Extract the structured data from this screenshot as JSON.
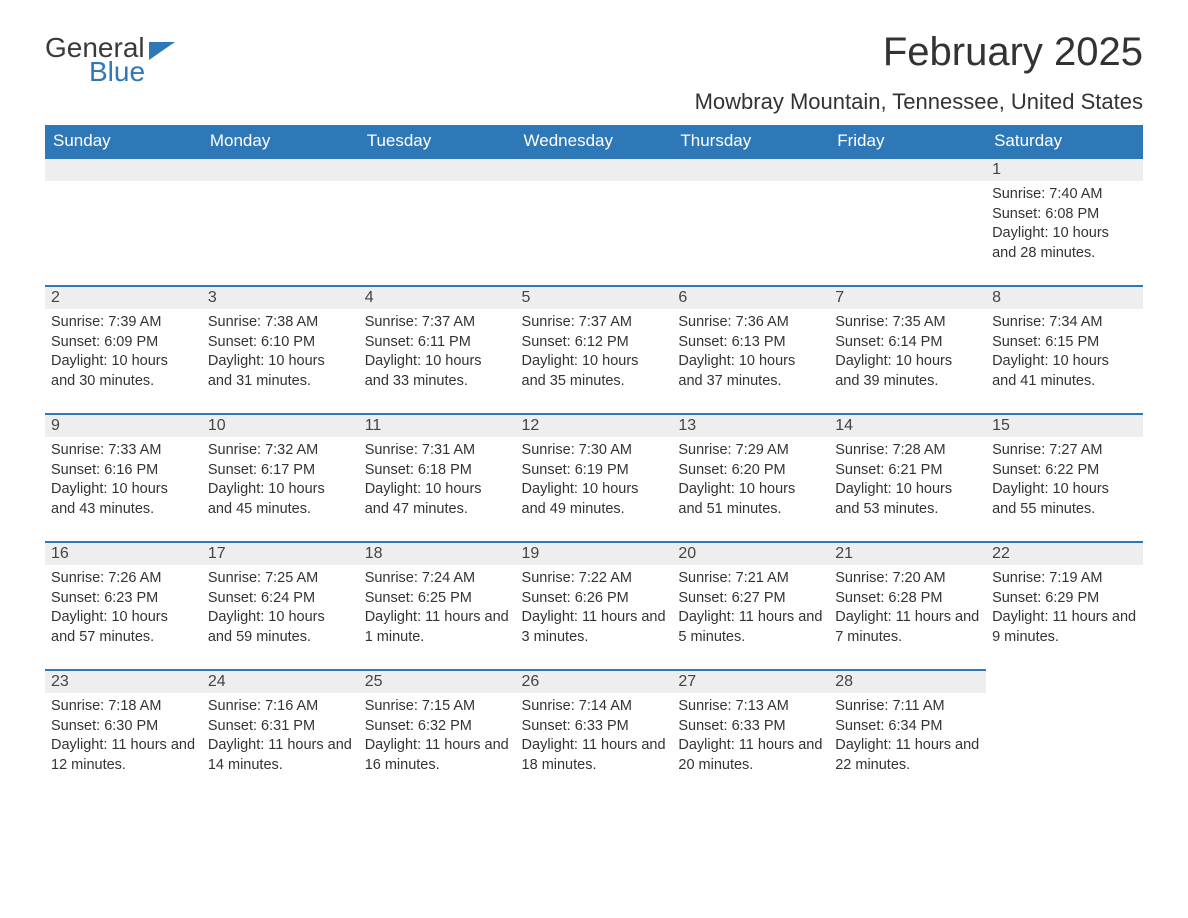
{
  "logo": {
    "word1": "General",
    "word2": "Blue"
  },
  "title": "February 2025",
  "location": "Mowbray Mountain, Tennessee, United States",
  "colors": {
    "header_bg": "#2e78b7",
    "header_text": "#ffffff",
    "daynum_bg": "#eeeeee",
    "body_text": "#333333",
    "page_bg": "#ffffff"
  },
  "daysOfWeek": [
    "Sunday",
    "Monday",
    "Tuesday",
    "Wednesday",
    "Thursday",
    "Friday",
    "Saturday"
  ],
  "weeks": [
    [
      null,
      null,
      null,
      null,
      null,
      null,
      {
        "n": "1",
        "sr": "7:40 AM",
        "ss": "6:08 PM",
        "dl": "10 hours and 28 minutes."
      }
    ],
    [
      {
        "n": "2",
        "sr": "7:39 AM",
        "ss": "6:09 PM",
        "dl": "10 hours and 30 minutes."
      },
      {
        "n": "3",
        "sr": "7:38 AM",
        "ss": "6:10 PM",
        "dl": "10 hours and 31 minutes."
      },
      {
        "n": "4",
        "sr": "7:37 AM",
        "ss": "6:11 PM",
        "dl": "10 hours and 33 minutes."
      },
      {
        "n": "5",
        "sr": "7:37 AM",
        "ss": "6:12 PM",
        "dl": "10 hours and 35 minutes."
      },
      {
        "n": "6",
        "sr": "7:36 AM",
        "ss": "6:13 PM",
        "dl": "10 hours and 37 minutes."
      },
      {
        "n": "7",
        "sr": "7:35 AM",
        "ss": "6:14 PM",
        "dl": "10 hours and 39 minutes."
      },
      {
        "n": "8",
        "sr": "7:34 AM",
        "ss": "6:15 PM",
        "dl": "10 hours and 41 minutes."
      }
    ],
    [
      {
        "n": "9",
        "sr": "7:33 AM",
        "ss": "6:16 PM",
        "dl": "10 hours and 43 minutes."
      },
      {
        "n": "10",
        "sr": "7:32 AM",
        "ss": "6:17 PM",
        "dl": "10 hours and 45 minutes."
      },
      {
        "n": "11",
        "sr": "7:31 AM",
        "ss": "6:18 PM",
        "dl": "10 hours and 47 minutes."
      },
      {
        "n": "12",
        "sr": "7:30 AM",
        "ss": "6:19 PM",
        "dl": "10 hours and 49 minutes."
      },
      {
        "n": "13",
        "sr": "7:29 AM",
        "ss": "6:20 PM",
        "dl": "10 hours and 51 minutes."
      },
      {
        "n": "14",
        "sr": "7:28 AM",
        "ss": "6:21 PM",
        "dl": "10 hours and 53 minutes."
      },
      {
        "n": "15",
        "sr": "7:27 AM",
        "ss": "6:22 PM",
        "dl": "10 hours and 55 minutes."
      }
    ],
    [
      {
        "n": "16",
        "sr": "7:26 AM",
        "ss": "6:23 PM",
        "dl": "10 hours and 57 minutes."
      },
      {
        "n": "17",
        "sr": "7:25 AM",
        "ss": "6:24 PM",
        "dl": "10 hours and 59 minutes."
      },
      {
        "n": "18",
        "sr": "7:24 AM",
        "ss": "6:25 PM",
        "dl": "11 hours and 1 minute."
      },
      {
        "n": "19",
        "sr": "7:22 AM",
        "ss": "6:26 PM",
        "dl": "11 hours and 3 minutes."
      },
      {
        "n": "20",
        "sr": "7:21 AM",
        "ss": "6:27 PM",
        "dl": "11 hours and 5 minutes."
      },
      {
        "n": "21",
        "sr": "7:20 AM",
        "ss": "6:28 PM",
        "dl": "11 hours and 7 minutes."
      },
      {
        "n": "22",
        "sr": "7:19 AM",
        "ss": "6:29 PM",
        "dl": "11 hours and 9 minutes."
      }
    ],
    [
      {
        "n": "23",
        "sr": "7:18 AM",
        "ss": "6:30 PM",
        "dl": "11 hours and 12 minutes."
      },
      {
        "n": "24",
        "sr": "7:16 AM",
        "ss": "6:31 PM",
        "dl": "11 hours and 14 minutes."
      },
      {
        "n": "25",
        "sr": "7:15 AM",
        "ss": "6:32 PM",
        "dl": "11 hours and 16 minutes."
      },
      {
        "n": "26",
        "sr": "7:14 AM",
        "ss": "6:33 PM",
        "dl": "11 hours and 18 minutes."
      },
      {
        "n": "27",
        "sr": "7:13 AM",
        "ss": "6:33 PM",
        "dl": "11 hours and 20 minutes."
      },
      {
        "n": "28",
        "sr": "7:11 AM",
        "ss": "6:34 PM",
        "dl": "11 hours and 22 minutes."
      },
      null
    ]
  ],
  "labels": {
    "sunrise": "Sunrise: ",
    "sunset": "Sunset: ",
    "daylight": "Daylight: "
  }
}
